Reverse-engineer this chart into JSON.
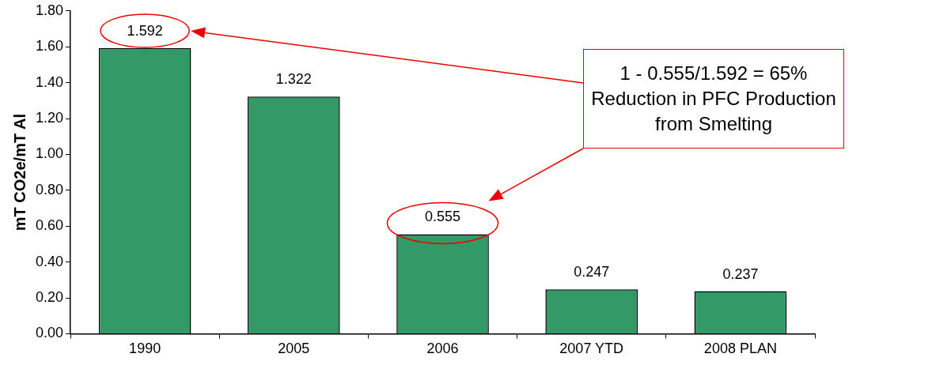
{
  "chart_data": {
    "type": "bar",
    "ylabel": "mT CO2e/mT Al",
    "categories": [
      "1990",
      "2005",
      "2006",
      "2007 YTD",
      "2008 PLAN"
    ],
    "values": [
      1.592,
      1.322,
      0.555,
      0.247,
      0.237
    ],
    "color": "#339966",
    "ylim": [
      0,
      1.8
    ],
    "yticks": [
      {
        "value": 0,
        "label": "0.00"
      },
      {
        "value": 0.2,
        "label": "0.20"
      },
      {
        "value": 0.4,
        "label": "0.40"
      },
      {
        "value": 0.6,
        "label": "0.60"
      },
      {
        "value": 0.8,
        "label": "0.80"
      },
      {
        "value": 1,
        "label": "1.00"
      },
      {
        "value": 1.2,
        "label": "1.20"
      },
      {
        "value": 1.4,
        "label": "1.40"
      },
      {
        "value": 1.6,
        "label": "1.60"
      },
      {
        "value": 1.8,
        "label": "1.80"
      }
    ],
    "grid": false,
    "legend": false,
    "data_labels": true,
    "annotations": [
      "1 - 0.555/1.592 = 65%\nReduction in PFC Production\nfrom Smelting"
    ]
  }
}
